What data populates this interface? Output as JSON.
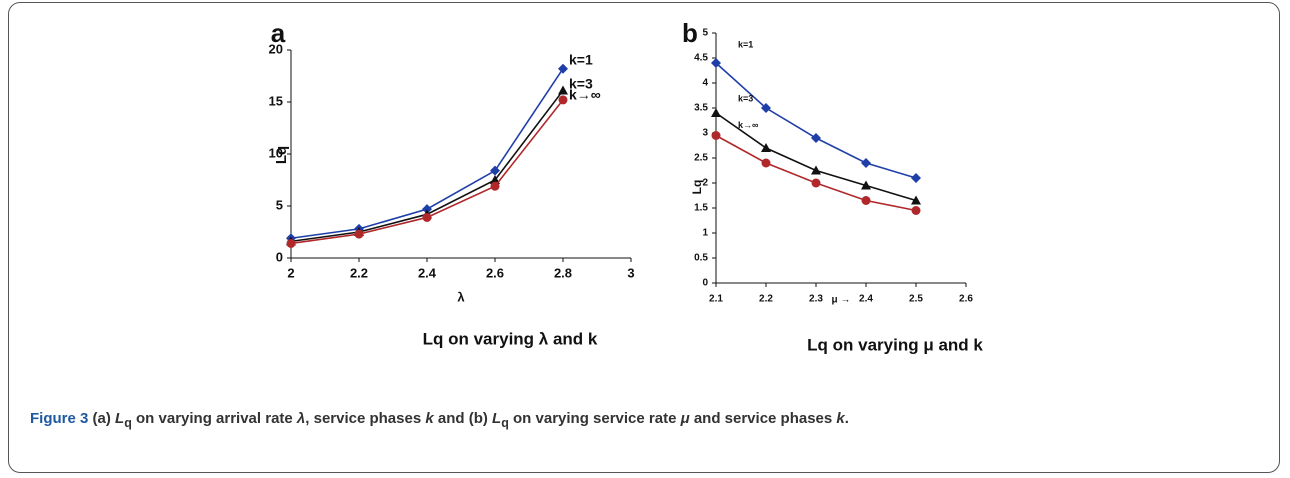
{
  "chart_data": [
    {
      "type": "line",
      "panel": "a",
      "title": "Lq on varying λ and k",
      "xlabel": "λ",
      "ylabel": "Lq",
      "x": [
        2,
        2.2,
        2.4,
        2.6,
        2.8
      ],
      "xlim": [
        2,
        3
      ],
      "xticks": [
        2,
        2.2,
        2.4,
        2.6,
        2.8,
        3
      ],
      "ylim": [
        0,
        20
      ],
      "yticks": [
        0,
        5,
        10,
        15,
        20
      ],
      "legend": "end",
      "series": [
        {
          "name": "k=1",
          "color": "#1f3fa8",
          "marker": "diamond",
          "values": [
            1.9,
            2.8,
            4.7,
            8.4,
            18.2
          ]
        },
        {
          "name": "k=3",
          "color": "#111111",
          "marker": "triangle",
          "values": [
            1.6,
            2.5,
            4.2,
            7.5,
            16.1
          ]
        },
        {
          "name": "k→∞",
          "color": "#b0282a",
          "marker": "circle",
          "values": [
            1.4,
            2.3,
            3.9,
            6.9,
            15.2
          ]
        }
      ]
    },
    {
      "type": "line",
      "panel": "b",
      "title": "Lq on varying μ and k",
      "xlabel": "μ →",
      "ylabel": "Lq",
      "x": [
        2.1,
        2.2,
        2.3,
        2.4,
        2.5
      ],
      "xlim": [
        2.1,
        2.6
      ],
      "xticks": [
        2.1,
        2.2,
        2.3,
        2.4,
        2.5,
        2.6
      ],
      "ylim": [
        0,
        5
      ],
      "yticks": [
        0,
        0.5,
        1,
        1.5,
        2,
        2.5,
        3,
        3.5,
        4,
        4.5,
        5
      ],
      "legend": "start",
      "series": [
        {
          "name": "k=1",
          "color": "#1f3fa8",
          "marker": "diamond",
          "values": [
            4.4,
            3.5,
            2.9,
            2.4,
            2.1
          ]
        },
        {
          "name": "k=3",
          "color": "#111111",
          "marker": "triangle",
          "values": [
            3.4,
            2.7,
            2.25,
            1.95,
            1.65
          ]
        },
        {
          "name": "k→∞",
          "color": "#b0282a",
          "marker": "circle",
          "values": [
            2.95,
            2.4,
            2.0,
            1.65,
            1.45
          ]
        }
      ]
    }
  ],
  "caption": {
    "label": "Figure 3",
    "parts": [
      "(a) ",
      "L",
      "q",
      " on varying arrival rate ",
      "λ",
      ", service phases ",
      "k",
      " and (b) ",
      "L",
      "q",
      " on varying service rate ",
      "μ",
      " and service phases ",
      "k",
      "."
    ]
  }
}
